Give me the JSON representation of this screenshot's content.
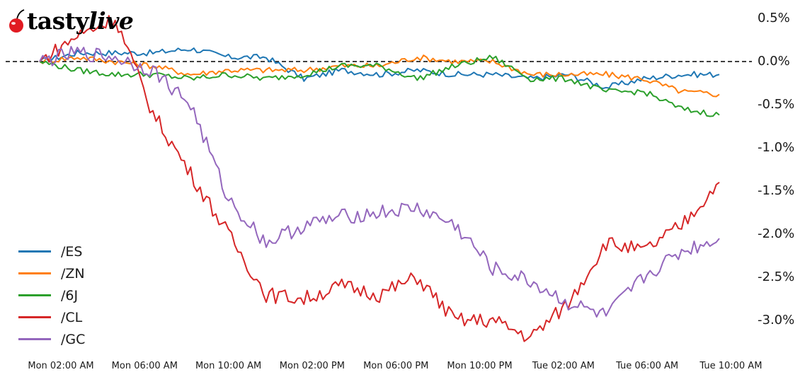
{
  "logo": {
    "brand_part1": "tasty",
    "brand_part2": "live",
    "icon": "cherry-icon",
    "color": "#e11b22"
  },
  "y_ticks": [
    "0.5%",
    "0.0%",
    "-0.5%",
    "-1.0%",
    "-1.5%",
    "-2.0%",
    "-2.5%",
    "-3.0%"
  ],
  "x_ticks": [
    "Mon 02:00 AM",
    "Mon 06:00 AM",
    "Mon 10:00 AM",
    "Mon 02:00 PM",
    "Mon 06:00 PM",
    "Mon 10:00 PM",
    "Tue 02:00 AM",
    "Tue 06:00 AM",
    "Tue 10:00 AM"
  ],
  "legend": [
    {
      "label": "/ES",
      "color": "#1f77b4"
    },
    {
      "label": "/ZN",
      "color": "#ff7f0e"
    },
    {
      "label": "/6J",
      "color": "#2ca02c"
    },
    {
      "label": "/CL",
      "color": "#d62728"
    },
    {
      "label": "/GC",
      "color": "#9467bd"
    }
  ],
  "chart_data": {
    "type": "line",
    "title": "",
    "xlabel": "",
    "ylabel": "",
    "ylim": [
      -3.3,
      0.6
    ],
    "grid": false,
    "legend_position": "lower left",
    "reference_line": {
      "y": 0.0,
      "style": "dashed",
      "color": "#000000"
    },
    "x": [
      "Mon 12:30 AM",
      "Mon 02:00 AM",
      "Mon 04:00 AM",
      "Mon 06:00 AM",
      "Mon 08:00 AM",
      "Mon 10:00 AM",
      "Mon 12:00 PM",
      "Mon 02:00 PM",
      "Mon 04:00 PM",
      "Mon 06:00 PM",
      "Mon 08:00 PM",
      "Mon 10:00 PM",
      "Tue 12:00 AM",
      "Tue 02:00 AM",
      "Tue 04:00 AM",
      "Tue 06:00 AM",
      "Tue 08:00 AM",
      "Tue 10:00 AM",
      "Tue 10:30 AM"
    ],
    "series": [
      {
        "name": "/ES",
        "color": "#1f77b4",
        "values": [
          0.0,
          0.1,
          0.1,
          0.1,
          0.15,
          0.05,
          0.05,
          -0.2,
          -0.1,
          -0.15,
          -0.1,
          -0.15,
          -0.15,
          -0.2,
          -0.15,
          -0.3,
          -0.2,
          -0.15,
          -0.15
        ]
      },
      {
        "name": "/ZN",
        "color": "#ff7f0e",
        "values": [
          0.0,
          0.05,
          0.0,
          -0.05,
          -0.15,
          -0.1,
          -0.1,
          -0.1,
          -0.05,
          -0.05,
          0.05,
          0.0,
          0.0,
          -0.15,
          -0.15,
          -0.15,
          -0.2,
          -0.35,
          -0.38
        ]
      },
      {
        "name": "/6J",
        "color": "#2ca02c",
        "values": [
          0.0,
          -0.1,
          -0.15,
          -0.15,
          -0.2,
          -0.15,
          -0.2,
          -0.15,
          -0.05,
          -0.05,
          -0.2,
          -0.05,
          0.05,
          -0.2,
          -0.2,
          -0.35,
          -0.35,
          -0.55,
          -0.62
        ]
      },
      {
        "name": "/CL",
        "color": "#d62728",
        "values": [
          0.0,
          0.3,
          0.5,
          -0.6,
          -1.3,
          -2.0,
          -2.7,
          -2.75,
          -2.6,
          -2.7,
          -2.5,
          -3.0,
          -3.0,
          -3.2,
          -2.8,
          -2.1,
          -2.2,
          -1.9,
          -1.4
        ]
      },
      {
        "name": "/GC",
        "color": "#9467bd",
        "values": [
          0.0,
          0.1,
          0.05,
          -0.1,
          -0.5,
          -1.6,
          -2.1,
          -1.9,
          -1.8,
          -1.75,
          -1.7,
          -1.9,
          -2.4,
          -2.55,
          -2.8,
          -2.95,
          -2.5,
          -2.2,
          -2.05
        ]
      }
    ]
  }
}
